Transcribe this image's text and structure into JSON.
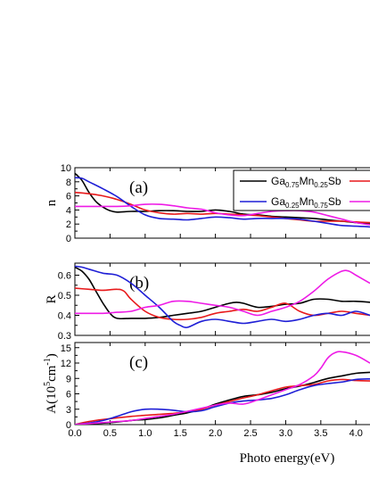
{
  "chart_data": {
    "type": "line",
    "xlabel": "Photo energy(eV)",
    "xlim": [
      0.0,
      4.2
    ],
    "xticks": [
      "0.0",
      "0.5",
      "1.0",
      "1.5",
      "2.0",
      "2.5",
      "3.0",
      "3.5",
      "4.0"
    ],
    "legend": {
      "placement": "top-right",
      "entries": [
        {
          "base1": "Ga",
          "sub1": "0.75",
          "base2": "Mn",
          "sub2": "0.25",
          "base3": "Sb",
          "color": "#000000"
        },
        {
          "base1": "",
          "sub1": "",
          "base2": "",
          "sub2": "",
          "base3": "",
          "color": "#e8191b"
        },
        {
          "base1": "Ga",
          "sub1": "0.25",
          "base2": "Mn",
          "sub2": "0.75",
          "base3": "Sb",
          "color": "#1f1fd6"
        },
        {
          "base1": "",
          "sub1": "",
          "base2": "",
          "sub2": "",
          "base3": "",
          "color": "#ee1be6"
        }
      ]
    },
    "panels": [
      {
        "label": "(a)",
        "ylabel_html": "n",
        "ylim": [
          0,
          10
        ],
        "yticks": [
          "0",
          "2",
          "4",
          "6",
          "8",
          "10"
        ],
        "series": [
          {
            "color": "#000000",
            "x": [
              0,
              0.1,
              0.2,
              0.3,
              0.4,
              0.5,
              0.6,
              0.8,
              1.0,
              1.2,
              1.4,
              1.6,
              1.8,
              2.0,
              2.2,
              2.4,
              2.6,
              2.8,
              3.0,
              3.2,
              3.4,
              3.6,
              3.8,
              4.0,
              4.2
            ],
            "y": [
              9.2,
              8.2,
              6.5,
              5.2,
              4.4,
              3.9,
              3.7,
              3.8,
              3.8,
              3.9,
              3.9,
              3.8,
              3.8,
              4.0,
              3.8,
              3.4,
              3.3,
              3.1,
              3.0,
              2.9,
              2.8,
              2.6,
              2.4,
              2.2,
              2.0
            ]
          },
          {
            "color": "#e8191b",
            "x": [
              0,
              0.2,
              0.4,
              0.6,
              0.8,
              1.0,
              1.2,
              1.4,
              1.6,
              1.8,
              2.0,
              2.2,
              2.4,
              2.6,
              2.8,
              3.0,
              3.2,
              3.4,
              3.6,
              3.8,
              4.0,
              4.2
            ],
            "y": [
              6.5,
              6.3,
              6.0,
              5.5,
              4.8,
              4.0,
              3.6,
              3.4,
              3.5,
              3.4,
              3.5,
              3.4,
              3.3,
              3.2,
              3.0,
              2.8,
              2.6,
              2.4,
              2.4,
              2.4,
              2.3,
              2.2
            ]
          },
          {
            "color": "#1f1fd6",
            "x": [
              0,
              0.1,
              0.2,
              0.4,
              0.6,
              0.8,
              1.0,
              1.2,
              1.4,
              1.6,
              1.8,
              2.0,
              2.2,
              2.4,
              2.6,
              2.8,
              3.0,
              3.2,
              3.4,
              3.6,
              3.8,
              4.0,
              4.2
            ],
            "y": [
              8.6,
              8.5,
              8.0,
              7.0,
              5.9,
              4.5,
              3.3,
              2.8,
              2.7,
              2.6,
              2.8,
              3.0,
              2.9,
              2.7,
              2.8,
              2.8,
              2.8,
              2.7,
              2.4,
              2.1,
              1.8,
              1.7,
              1.6
            ]
          },
          {
            "color": "#ee1be6",
            "x": [
              0,
              0.2,
              0.4,
              0.6,
              0.8,
              1.0,
              1.2,
              1.4,
              1.6,
              1.8,
              2.0,
              2.2,
              2.4,
              2.6,
              2.8,
              3.0,
              3.2,
              3.4,
              3.6,
              3.8,
              4.0,
              4.2
            ],
            "y": [
              4.5,
              4.5,
              4.5,
              4.5,
              4.6,
              4.8,
              4.8,
              4.6,
              4.3,
              4.1,
              3.6,
              3.3,
              3.2,
              3.5,
              3.8,
              3.9,
              3.9,
              3.7,
              3.2,
              2.7,
              2.2,
              1.9
            ]
          }
        ]
      },
      {
        "label": "(b)",
        "ylabel_html": "R",
        "ylim": [
          0.3,
          0.66
        ],
        "yticks": [
          "0.3",
          "0.4",
          "0.5",
          "0.6"
        ],
        "series": [
          {
            "color": "#000000",
            "x": [
              0,
              0.1,
              0.2,
              0.3,
              0.4,
              0.5,
              0.6,
              0.8,
              1.0,
              1.2,
              1.4,
              1.6,
              1.8,
              2.0,
              2.2,
              2.3,
              2.4,
              2.6,
              2.8,
              3.0,
              3.2,
              3.4,
              3.6,
              3.8,
              4.0,
              4.2
            ],
            "y": [
              0.64,
              0.62,
              0.58,
              0.52,
              0.46,
              0.41,
              0.385,
              0.385,
              0.385,
              0.39,
              0.4,
              0.41,
              0.42,
              0.44,
              0.46,
              0.465,
              0.46,
              0.44,
              0.445,
              0.455,
              0.46,
              0.48,
              0.48,
              0.47,
              0.47,
              0.465
            ]
          },
          {
            "color": "#e8191b",
            "x": [
              0,
              0.2,
              0.4,
              0.6,
              0.7,
              0.8,
              1.0,
              1.2,
              1.4,
              1.6,
              1.8,
              2.0,
              2.2,
              2.4,
              2.6,
              2.8,
              3.0,
              3.2,
              3.4,
              3.6,
              3.8,
              4.0,
              4.2
            ],
            "y": [
              0.535,
              0.53,
              0.525,
              0.53,
              0.52,
              0.48,
              0.42,
              0.39,
              0.38,
              0.38,
              0.39,
              0.41,
              0.42,
              0.43,
              0.42,
              0.44,
              0.46,
              0.42,
              0.4,
              0.41,
              0.42,
              0.41,
              0.4
            ]
          },
          {
            "color": "#1f1fd6",
            "x": [
              0,
              0.1,
              0.2,
              0.4,
              0.6,
              0.8,
              1.0,
              1.2,
              1.4,
              1.5,
              1.6,
              1.8,
              2.0,
              2.2,
              2.4,
              2.6,
              2.8,
              3.0,
              3.2,
              3.4,
              3.6,
              3.8,
              4.0,
              4.2
            ],
            "y": [
              0.645,
              0.64,
              0.63,
              0.61,
              0.6,
              0.56,
              0.5,
              0.44,
              0.37,
              0.35,
              0.34,
              0.37,
              0.38,
              0.37,
              0.36,
              0.37,
              0.38,
              0.37,
              0.38,
              0.4,
              0.41,
              0.4,
              0.42,
              0.4
            ]
          },
          {
            "color": "#ee1be6",
            "x": [
              0,
              0.2,
              0.4,
              0.6,
              0.8,
              1.0,
              1.2,
              1.4,
              1.6,
              1.8,
              2.0,
              2.2,
              2.4,
              2.6,
              2.8,
              3.0,
              3.2,
              3.4,
              3.6,
              3.8,
              3.9,
              4.0,
              4.2
            ],
            "y": [
              0.41,
              0.41,
              0.41,
              0.415,
              0.42,
              0.44,
              0.45,
              0.47,
              0.47,
              0.46,
              0.45,
              0.44,
              0.42,
              0.4,
              0.42,
              0.44,
              0.47,
              0.52,
              0.58,
              0.62,
              0.62,
              0.6,
              0.56
            ]
          }
        ]
      },
      {
        "label": "(c)",
        "ylabel_html": "A(10<tspan dy='-6' font-size='10'>5</tspan><tspan dy='6'>cm</tspan><tspan dy='-6' font-size='10'>-1</tspan><tspan dy='6'>)</tspan>",
        "ylim": [
          0,
          16
        ],
        "yticks": [
          "0",
          "3",
          "6",
          "9",
          "12",
          "15"
        ],
        "series": [
          {
            "color": "#000000",
            "x": [
              0,
              0.2,
              0.4,
              0.6,
              0.8,
              1.0,
              1.2,
              1.4,
              1.6,
              1.8,
              2.0,
              2.2,
              2.4,
              2.6,
              2.8,
              3.0,
              3.2,
              3.4,
              3.6,
              3.8,
              4.0,
              4.2
            ],
            "y": [
              0,
              0.2,
              0.3,
              0.5,
              0.8,
              1.0,
              1.3,
              1.8,
              2.3,
              3.0,
              4.0,
              4.8,
              5.5,
              5.8,
              6.3,
              7.0,
              7.5,
              8.2,
              9.0,
              9.5,
              10.0,
              10.2
            ]
          },
          {
            "color": "#e8191b",
            "x": [
              0,
              0.2,
              0.4,
              0.6,
              0.8,
              1.0,
              1.2,
              1.4,
              1.6,
              1.8,
              2.0,
              2.2,
              2.4,
              2.6,
              2.8,
              3.0,
              3.2,
              3.4,
              3.6,
              3.8,
              4.0,
              4.2
            ],
            "y": [
              0,
              0.6,
              1.0,
              1.3,
              1.6,
              1.8,
              2.0,
              2.2,
              2.5,
              3.0,
              3.8,
              4.5,
              5.2,
              5.8,
              6.6,
              7.3,
              7.6,
              7.8,
              8.5,
              8.8,
              8.6,
              8.5
            ]
          },
          {
            "color": "#1f1fd6",
            "x": [
              0,
              0.2,
              0.4,
              0.6,
              0.8,
              1.0,
              1.2,
              1.4,
              1.6,
              1.8,
              2.0,
              2.2,
              2.4,
              2.6,
              2.8,
              3.0,
              3.2,
              3.4,
              3.6,
              3.8,
              4.0,
              4.2
            ],
            "y": [
              0,
              0.3,
              0.8,
              1.6,
              2.5,
              3.0,
              3.0,
              2.8,
              2.5,
              2.7,
              3.5,
              4.2,
              4.6,
              4.8,
              5.1,
              5.8,
              6.8,
              7.6,
              8.0,
              8.3,
              8.8,
              8.9
            ]
          },
          {
            "color": "#ee1be6",
            "x": [
              0,
              0.2,
              0.4,
              0.6,
              0.8,
              1.0,
              1.2,
              1.4,
              1.6,
              1.8,
              2.0,
              2.2,
              2.4,
              2.6,
              2.8,
              3.0,
              3.2,
              3.4,
              3.5,
              3.6,
              3.7,
              3.8,
              4.0,
              4.2
            ],
            "y": [
              0,
              0.2,
              0.4,
              0.6,
              0.8,
              1.2,
              1.6,
              2.0,
              2.6,
              3.2,
              3.8,
              4.2,
              4.0,
              4.8,
              5.8,
              6.8,
              7.8,
              9.5,
              11.0,
              13.0,
              14.0,
              14.2,
              13.5,
              12.0
            ]
          }
        ]
      }
    ]
  }
}
